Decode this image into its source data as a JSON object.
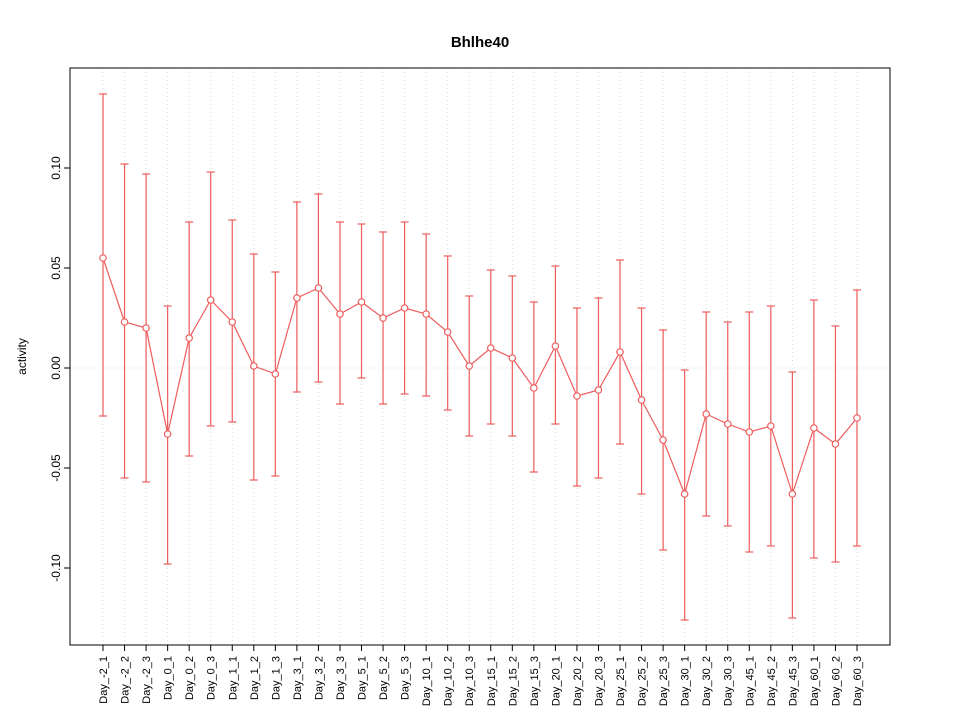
{
  "page": {
    "background": "#ffffff"
  },
  "chart_data": {
    "type": "line",
    "title": "Bhlhe40",
    "xlabel": "",
    "ylabel": "activity",
    "legend": "none",
    "grid": "dotted vertical line at each category plus dotted horizontal line at y=0",
    "marker": "open-circle",
    "error_bars": true,
    "yticks": [
      -0.1,
      -0.05,
      0.0,
      0.05,
      0.1
    ],
    "ylim": [
      -0.1385,
      0.15
    ],
    "colors": {
      "series": "#ee5c5c",
      "grid": "#d8d8d8",
      "axis": "#000000"
    },
    "categories": [
      "Day_-2_1",
      "Day_-2_2",
      "Day_-2_3",
      "Day_0_1",
      "Day_0_2",
      "Day_0_3",
      "Day_1_1",
      "Day_1_2",
      "Day_1_3",
      "Day_3_1",
      "Day_3_2",
      "Day_3_3",
      "Day_5_1",
      "Day_5_2",
      "Day_5_3",
      "Day_10_1",
      "Day_10_2",
      "Day_10_3",
      "Day_15_1",
      "Day_15_2",
      "Day_15_3",
      "Day_20_1",
      "Day_20_2",
      "Day_20_3",
      "Day_25_1",
      "Day_25_2",
      "Day_25_3",
      "Day_30_1",
      "Day_30_2",
      "Day_30_3",
      "Day_45_1",
      "Day_45_2",
      "Day_45_3",
      "Day_60_1",
      "Day_60_2",
      "Day_60_3"
    ],
    "series": [
      {
        "name": "activity",
        "values": [
          0.055,
          0.023,
          0.02,
          -0.033,
          0.015,
          0.034,
          0.023,
          0.001,
          -0.003,
          0.035,
          0.04,
          0.027,
          0.033,
          0.025,
          0.03,
          0.027,
          0.018,
          0.001,
          0.01,
          0.005,
          -0.01,
          0.011,
          -0.014,
          -0.011,
          0.008,
          -0.016,
          -0.036,
          -0.063,
          -0.023,
          -0.028,
          -0.032,
          -0.029,
          -0.063,
          -0.03,
          -0.038,
          -0.025
        ]
      },
      {
        "name": "upper",
        "values": [
          0.137,
          0.102,
          0.097,
          0.031,
          0.073,
          0.098,
          0.074,
          0.057,
          0.048,
          0.083,
          0.087,
          0.073,
          0.072,
          0.068,
          0.073,
          0.067,
          0.056,
          0.036,
          0.049,
          0.046,
          0.033,
          0.051,
          0.03,
          0.035,
          0.054,
          0.03,
          0.019,
          -0.001,
          0.028,
          0.023,
          0.028,
          0.031,
          -0.002,
          0.034,
          0.021,
          0.039
        ]
      },
      {
        "name": "lower",
        "values": [
          -0.024,
          -0.055,
          -0.057,
          -0.098,
          -0.044,
          -0.029,
          -0.027,
          -0.056,
          -0.054,
          -0.012,
          -0.007,
          -0.018,
          -0.005,
          -0.018,
          -0.013,
          -0.014,
          -0.021,
          -0.034,
          -0.028,
          -0.034,
          -0.052,
          -0.028,
          -0.059,
          -0.055,
          -0.038,
          -0.063,
          -0.091,
          -0.126,
          -0.074,
          -0.079,
          -0.092,
          -0.089,
          -0.125,
          -0.095,
          -0.097,
          -0.089
        ]
      }
    ]
  }
}
